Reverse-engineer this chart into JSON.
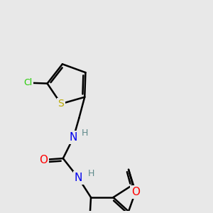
{
  "bg_color": "#e8e8e8",
  "atom_colors": {
    "C": "#000000",
    "N": "#0000ee",
    "O": "#ff0000",
    "S": "#bbaa00",
    "Cl": "#22cc00",
    "H": "#5f8a8b"
  }
}
